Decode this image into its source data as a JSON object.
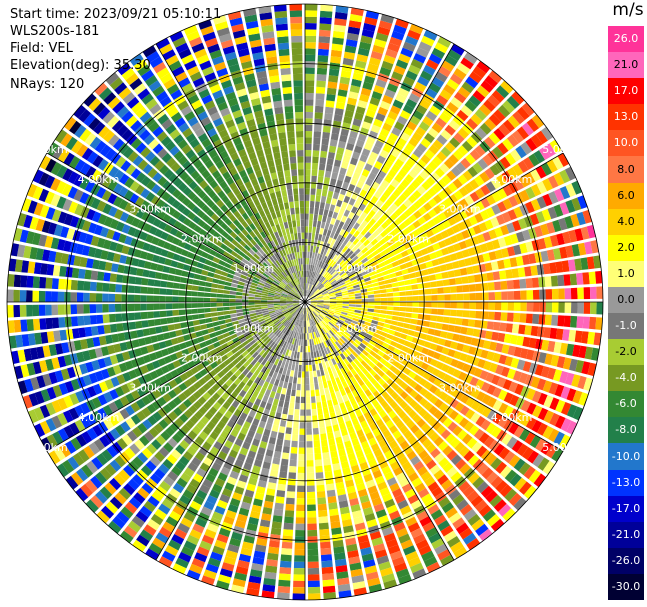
{
  "info": {
    "start_time": "Start time: 2023/09/21 05:10:11",
    "instrument": "WLS200s-181",
    "field": "Field: VEL",
    "elevation": "Elevation(deg): 35.30",
    "nrays": "NRays: 120"
  },
  "colorbar": {
    "title": "m/s",
    "bins": [
      {
        "label": "26.0",
        "color": "#ff3399"
      },
      {
        "label": "21.0",
        "color": "#ff66bb"
      },
      {
        "label": "17.0",
        "color": "#ff0000"
      },
      {
        "label": "13.0",
        "color": "#ff3300"
      },
      {
        "label": "10.0",
        "color": "#ff5522"
      },
      {
        "label": "8.0",
        "color": "#ff7744"
      },
      {
        "label": "6.0",
        "color": "#ffaa00"
      },
      {
        "label": "4.0",
        "color": "#ffd000"
      },
      {
        "label": "2.0",
        "color": "#ffff00"
      },
      {
        "label": "1.0",
        "color": "#ffff77"
      },
      {
        "label": "0.0",
        "color": "#999999"
      },
      {
        "label": "-1.0",
        "color": "#777777"
      },
      {
        "label": "-2.0",
        "color": "#a8cc33"
      },
      {
        "label": "-4.0",
        "color": "#779922"
      },
      {
        "label": "-6.0",
        "color": "#338833"
      },
      {
        "label": "-8.0",
        "color": "#22804a"
      },
      {
        "label": "-10.0",
        "color": "#2277cc"
      },
      {
        "label": "-13.0",
        "color": "#0033ff"
      },
      {
        "label": "-17.0",
        "color": "#0000cc"
      },
      {
        "label": "-21.0",
        "color": "#000099"
      },
      {
        "label": "-26.0",
        "color": "#000066"
      },
      {
        "label": "-30.0",
        "color": "#000033"
      }
    ]
  },
  "chart_data": {
    "type": "ppi",
    "field": "VEL",
    "units": "m/s",
    "nrays": 120,
    "range_rings_km": [
      1,
      2,
      3,
      4,
      5
    ],
    "ring_labels": [
      "1.00km",
      "2.00km",
      "3.00km",
      "4.00km",
      "5.00km"
    ],
    "max_range_km": 5.0,
    "colorbar_ticks": [
      26.0,
      21.0,
      17.0,
      13.0,
      10.0,
      8.0,
      6.0,
      4.0,
      2.0,
      1.0,
      0.0,
      -1.0,
      -2.0,
      -4.0,
      -6.0,
      -8.0,
      -10.0,
      -13.0,
      -17.0,
      -21.0,
      -26.0,
      -30.0
    ],
    "vmin": -30.0,
    "vmax": 26.0,
    "grid": true
  }
}
